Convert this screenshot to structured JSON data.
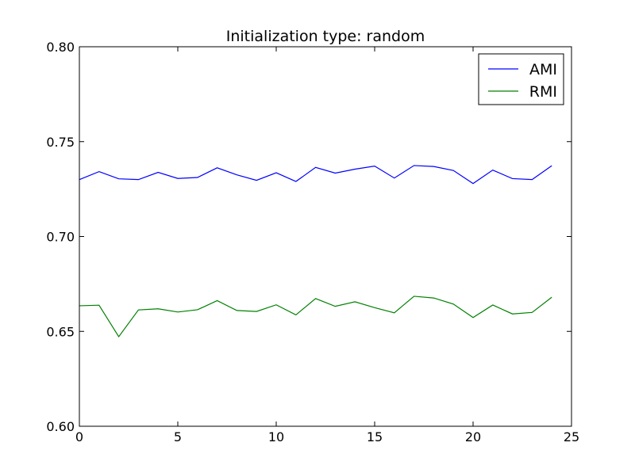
{
  "chart_data": {
    "type": "line",
    "title": "Initialization type: random",
    "xlabel": "",
    "ylabel": "",
    "xlim": [
      0,
      25
    ],
    "ylim": [
      0.6,
      0.8
    ],
    "xticks": [
      "0",
      "5",
      "10",
      "15",
      "20",
      "25"
    ],
    "yticks": [
      "0.60",
      "0.65",
      "0.70",
      "0.75",
      "0.80"
    ],
    "grid": false,
    "legend_position": "top-right",
    "x": [
      0,
      1,
      2,
      3,
      4,
      5,
      6,
      7,
      8,
      9,
      10,
      11,
      12,
      13,
      14,
      15,
      16,
      17,
      18,
      19,
      20,
      21,
      22,
      23,
      24
    ],
    "series": [
      {
        "name": "AMI",
        "color": "#0000ff",
        "values": [
          0.73,
          0.7342,
          0.7304,
          0.73,
          0.7338,
          0.7306,
          0.7311,
          0.7362,
          0.7325,
          0.7296,
          0.7336,
          0.729,
          0.7364,
          0.7334,
          0.7355,
          0.7371,
          0.7308,
          0.7374,
          0.7369,
          0.7348,
          0.7279,
          0.735,
          0.7305,
          0.73,
          0.7373
        ]
      },
      {
        "name": "RMI",
        "color": "#008000",
        "values": [
          0.6635,
          0.6638,
          0.6472,
          0.6613,
          0.6619,
          0.6602,
          0.6614,
          0.6662,
          0.661,
          0.6605,
          0.664,
          0.6587,
          0.6673,
          0.6632,
          0.6656,
          0.6625,
          0.6598,
          0.6685,
          0.6676,
          0.6644,
          0.6573,
          0.6639,
          0.6592,
          0.66,
          0.668
        ]
      }
    ]
  }
}
